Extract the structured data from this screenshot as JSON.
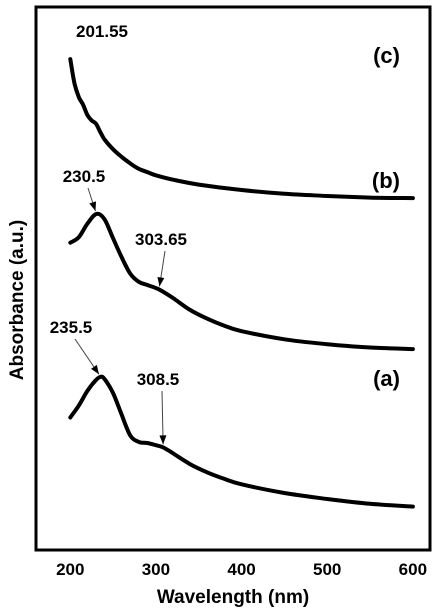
{
  "chart_data": {
    "type": "line",
    "xlabel": "Wavelength (nm)",
    "ylabel": "Absorbance (a.u.)",
    "xlim": [
      160,
      620
    ],
    "ylim": [
      0,
      100
    ],
    "x_ticks": [
      200,
      300,
      400,
      500,
      600
    ],
    "y_ticks_shown": false,
    "grid": false,
    "series": [
      {
        "label": "(c)",
        "x": [
          200,
          205,
          210,
          215,
          220,
          225,
          230,
          235,
          240,
          250,
          260,
          270,
          280,
          290,
          300,
          320,
          350,
          400,
          450,
          500,
          550,
          600
        ],
        "y": [
          90.4,
          85.9,
          83.4,
          82.0,
          80.1,
          79.1,
          78.5,
          77.0,
          75.6,
          73.8,
          72.4,
          71.2,
          70.2,
          69.6,
          69.0,
          68.2,
          67.3,
          66.3,
          65.6,
          65.2,
          64.9,
          64.8
        ]
      },
      {
        "label": "(b)",
        "x": [
          200,
          210,
          220,
          230.5,
          240,
          250,
          260,
          270,
          280,
          290,
          303.65,
          320,
          340,
          360,
          380,
          400,
          450,
          500,
          550,
          600
        ],
        "y": [
          56.6,
          57.6,
          60.1,
          61.9,
          60.9,
          57.4,
          53.9,
          50.9,
          49.4,
          48.8,
          48.0,
          46.4,
          44.2,
          42.6,
          41.3,
          40.3,
          38.8,
          37.9,
          37.3,
          37.0
        ]
      },
      {
        "label": "(a)",
        "x": [
          200,
          210,
          220,
          230,
          235.5,
          240,
          250,
          260,
          270,
          280,
          290,
          300,
          308.5,
          320,
          340,
          360,
          380,
          400,
          450,
          500,
          550,
          600
        ],
        "y": [
          24.4,
          26.6,
          29.3,
          31.3,
          31.9,
          31.5,
          28.9,
          24.9,
          21.1,
          19.9,
          19.7,
          19.3,
          18.9,
          17.8,
          15.8,
          14.3,
          13.1,
          12.1,
          10.5,
          9.4,
          8.5,
          8.0
        ]
      }
    ],
    "annotations": [
      {
        "text": "201.55",
        "series": 0,
        "x": 201.55
      },
      {
        "text": "230.5",
        "series": 1,
        "x": 230.5
      },
      {
        "text": "303.65",
        "series": 1,
        "x": 303.65
      },
      {
        "text": "235.5",
        "series": 2,
        "x": 235.5
      },
      {
        "text": "308.5",
        "series": 2,
        "x": 308.5
      }
    ]
  }
}
